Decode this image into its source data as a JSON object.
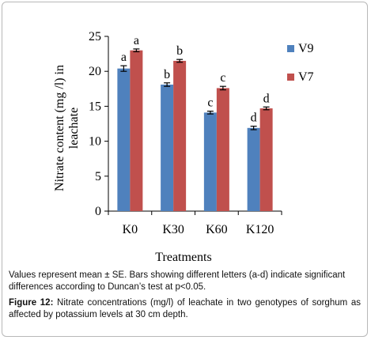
{
  "chart_data": {
    "type": "bar",
    "title": "",
    "xlabel": "Treatments",
    "ylabel": "Nitrate content (mg /l) in leachate",
    "categories": [
      "K0",
      "K30",
      "K60",
      "K120"
    ],
    "ylim": [
      0,
      25
    ],
    "yticks": [
      "0",
      "5",
      "10",
      "15",
      "20",
      "25"
    ],
    "grid": false,
    "legend_position": "right",
    "series": [
      {
        "name": "V9",
        "color": "#4f81bd",
        "values": [
          20.4,
          18.1,
          14.1,
          11.9
        ],
        "errors": [
          0.4,
          0.25,
          0.2,
          0.25
        ],
        "letters": [
          "a",
          "b",
          "c",
          "d"
        ]
      },
      {
        "name": "V7",
        "color": "#c0504d",
        "values": [
          23.0,
          21.5,
          17.6,
          14.7
        ],
        "errors": [
          0.2,
          0.2,
          0.25,
          0.2
        ],
        "letters": [
          "a",
          "b",
          "c",
          "d"
        ]
      }
    ]
  },
  "note": "Values represent mean ± SE. Bars showing different  letters (a-d) indicate significant differences according to Duncan’s test at p<0.05.",
  "caption": {
    "label": "Figure 12:",
    "text": " Nitrate concentrations (mg/l) of leachate in two genotypes of sorghum as affected by potassium levels at 30 cm depth."
  }
}
